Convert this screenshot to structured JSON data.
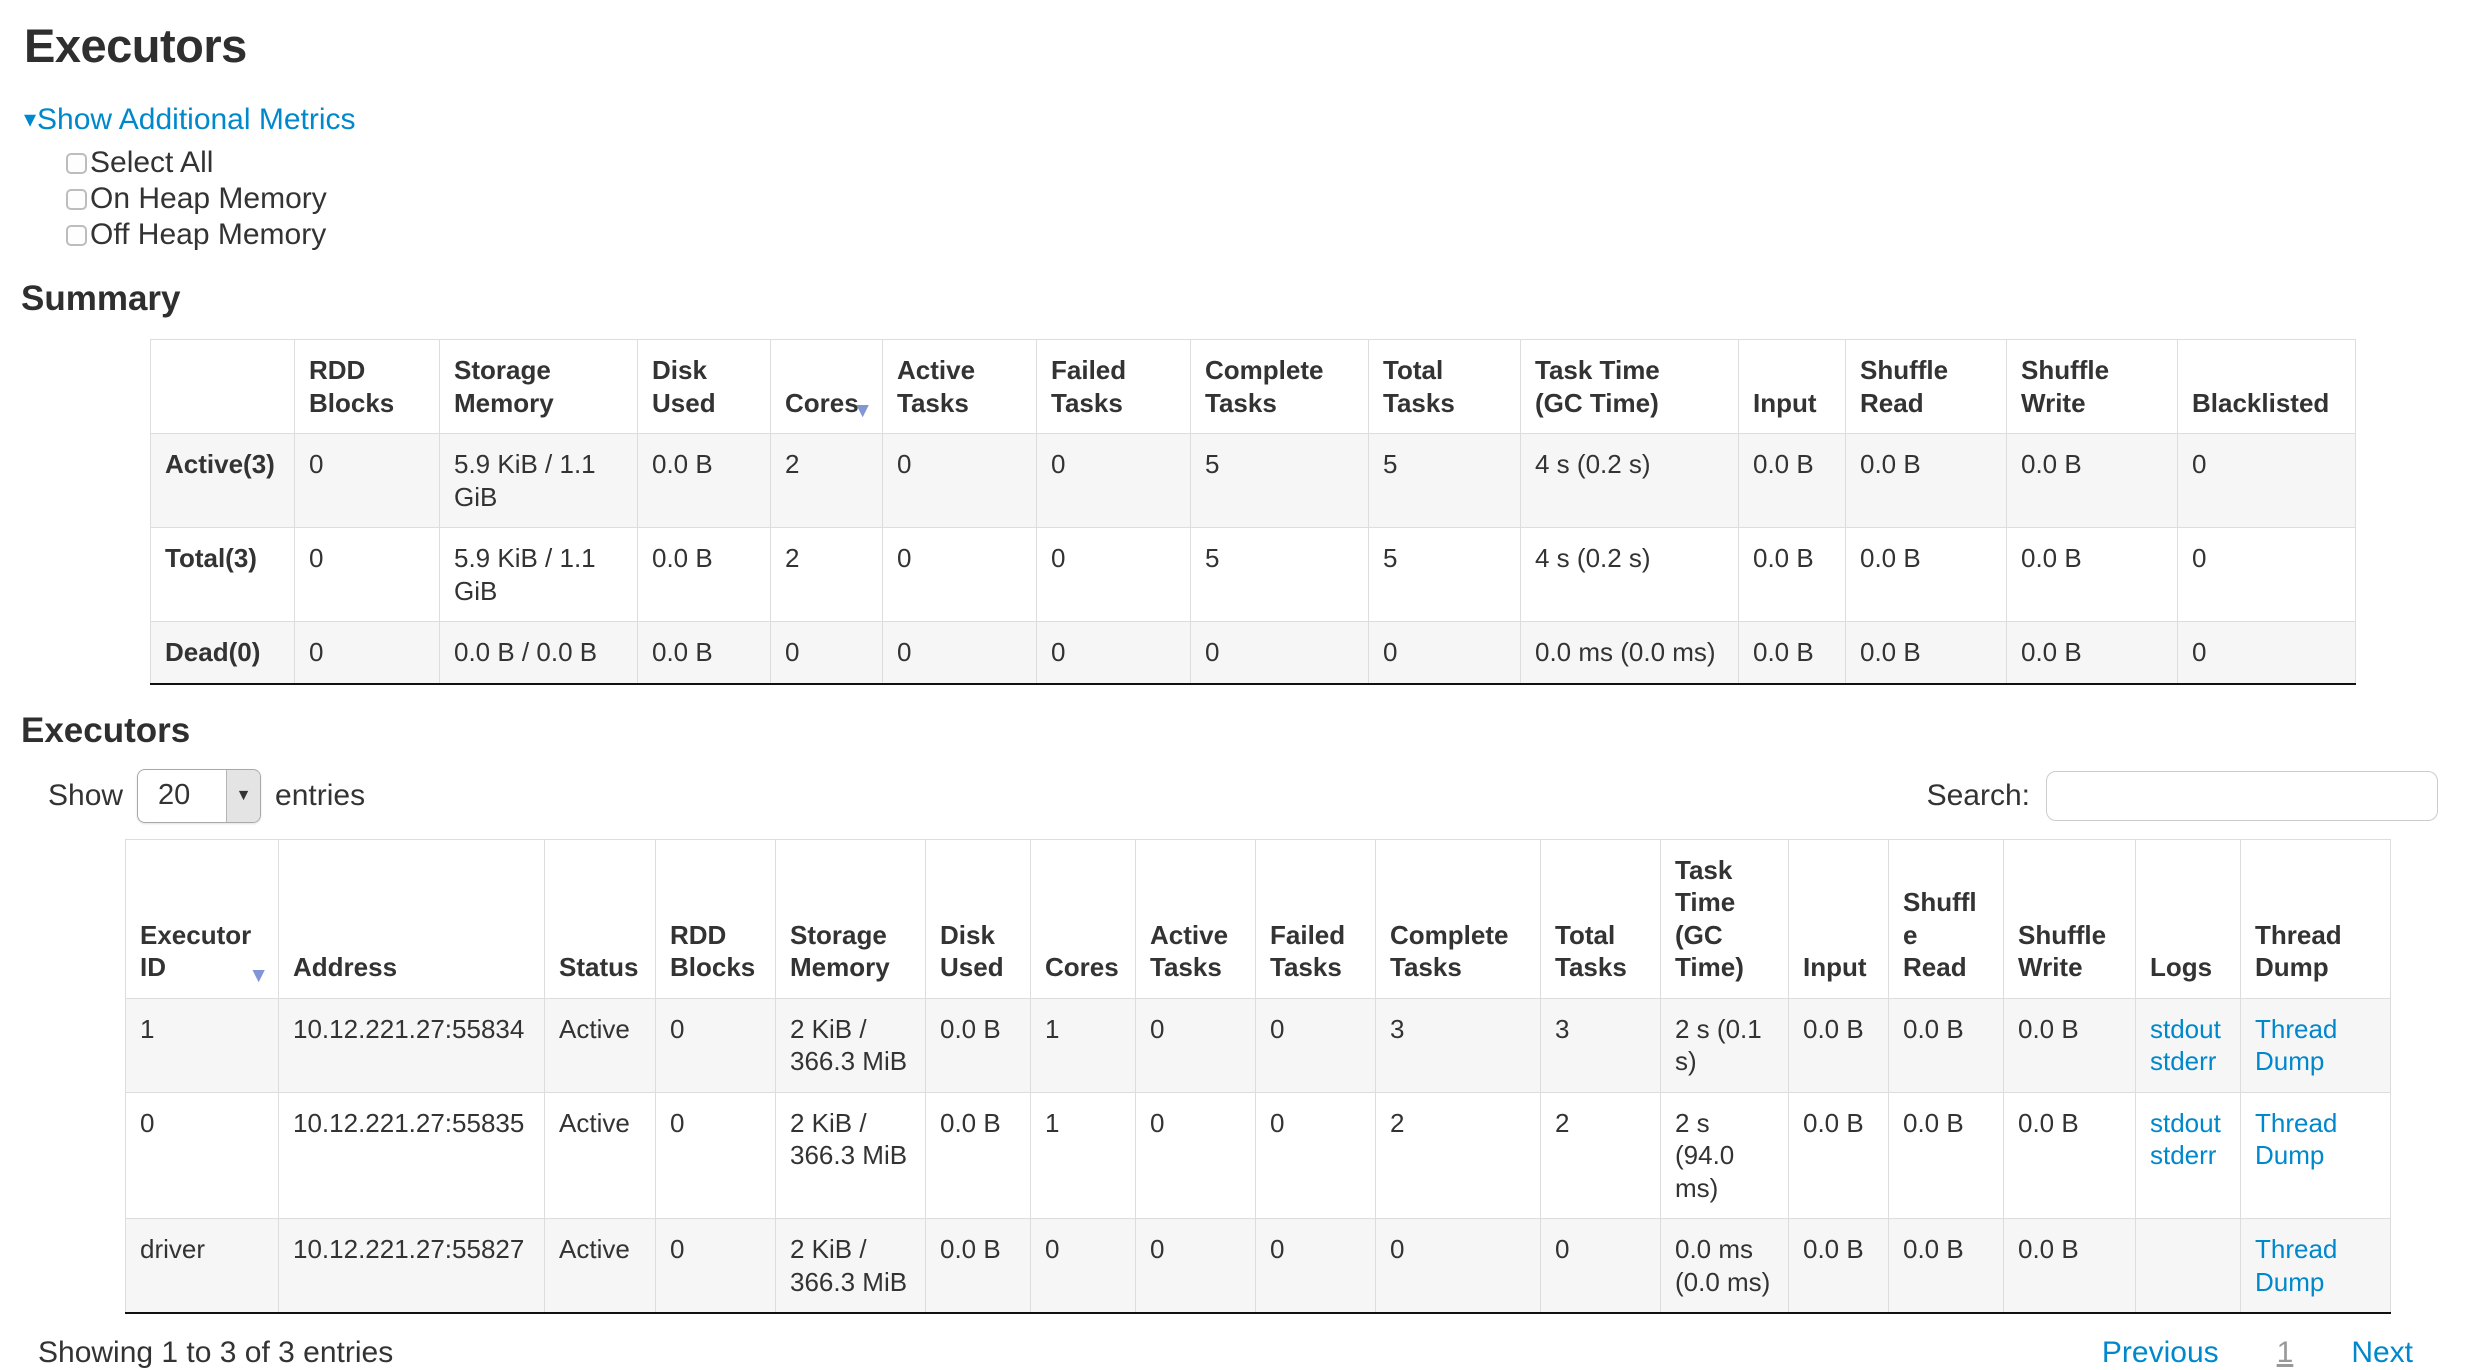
{
  "page": {
    "title": "Executors"
  },
  "icons": {
    "collapse_arrow": "▾",
    "sort_desc": "▼",
    "dropdown_arrow": "▼"
  },
  "colors": {
    "link_blue": "#0088cc",
    "sort_arrow": "#8295d5",
    "stripe_row": "#f6f6f6",
    "border_light": "#dddddd",
    "border_dark": "#111111",
    "text": "#333333"
  },
  "metrics_toggle": {
    "label": "Show Additional Metrics"
  },
  "checkboxes": [
    {
      "label": "Select All",
      "checked": false
    },
    {
      "label": "On Heap Memory",
      "checked": false
    },
    {
      "label": "Off Heap Memory",
      "checked": false
    }
  ],
  "summary_section": {
    "heading": "Summary",
    "table": {
      "headers": [
        "",
        "RDD\nBlocks",
        "Storage\nMemory",
        "Disk\nUsed",
        "Cores",
        "Active\nTasks",
        "Failed\nTasks",
        "Complete\nTasks",
        "Total\nTasks",
        "Task Time\n(GC Time)",
        "Input",
        "Shuffle\nRead",
        "Shuffle\nWrite",
        "Blacklisted"
      ],
      "sort_column_index": 4,
      "rows": [
        {
          "label": "Active(3)",
          "cells": [
            "0",
            "5.9 KiB / 1.1 GiB",
            "0.0 B",
            "2",
            "0",
            "0",
            "5",
            "5",
            "4 s (0.2 s)",
            "0.0 B",
            "0.0 B",
            "0.0 B",
            "0"
          ]
        },
        {
          "label": "Total(3)",
          "cells": [
            "0",
            "5.9 KiB / 1.1 GiB",
            "0.0 B",
            "2",
            "0",
            "0",
            "5",
            "5",
            "4 s (0.2 s)",
            "0.0 B",
            "0.0 B",
            "0.0 B",
            "0"
          ]
        },
        {
          "label": "Dead(0)",
          "cells": [
            "0",
            "0.0 B / 0.0 B",
            "0.0 B",
            "0",
            "0",
            "0",
            "0",
            "0",
            "0.0 ms (0.0 ms)",
            "0.0 B",
            "0.0 B",
            "0.0 B",
            "0"
          ]
        }
      ]
    }
  },
  "executors_section": {
    "heading": "Executors",
    "controls": {
      "show_label": "Show",
      "page_size": "20",
      "entries_label": "entries",
      "search_label": "Search:",
      "search_value": ""
    },
    "table": {
      "headers": [
        "Executor\nID",
        "Address",
        "Status",
        "RDD\nBlocks",
        "Storage\nMemory",
        "Disk\nUsed",
        "Cores",
        "Active\nTasks",
        "Failed\nTasks",
        "Complete\nTasks",
        "Total\nTasks",
        "Task\nTime\n(GC\nTime)",
        "Input",
        "Shuffle\nRead",
        "Shuffle\nWrite",
        "Logs",
        "Thread\nDump"
      ],
      "sort_column_index": 0,
      "rows": [
        {
          "cells": [
            "1",
            "10.12.221.27:55834",
            "Active",
            "0",
            "2 KiB / 366.3 MiB",
            "0.0 B",
            "1",
            "0",
            "0",
            "3",
            "3",
            "2 s (0.1 s)",
            "0.0 B",
            "0.0 B",
            "0.0 B"
          ],
          "logs": [
            "stdout",
            "stderr"
          ],
          "thread_dump": "Thread Dump"
        },
        {
          "cells": [
            "0",
            "10.12.221.27:55835",
            "Active",
            "0",
            "2 KiB / 366.3 MiB",
            "0.0 B",
            "1",
            "0",
            "0",
            "2",
            "2",
            "2 s (94.0 ms)",
            "0.0 B",
            "0.0 B",
            "0.0 B"
          ],
          "logs": [
            "stdout",
            "stderr"
          ],
          "thread_dump": "Thread Dump"
        },
        {
          "cells": [
            "driver",
            "10.12.221.27:55827",
            "Active",
            "0",
            "2 KiB / 366.3 MiB",
            "0.0 B",
            "0",
            "0",
            "0",
            "0",
            "0",
            "0.0 ms (0.0 ms)",
            "0.0 B",
            "0.0 B",
            "0.0 B"
          ],
          "logs": [],
          "thread_dump": "Thread Dump"
        }
      ]
    },
    "footer": {
      "status": "Showing 1 to 3 of 3 entries",
      "previous_label": "Previous",
      "page_number": "1",
      "next_label": "Next"
    }
  }
}
